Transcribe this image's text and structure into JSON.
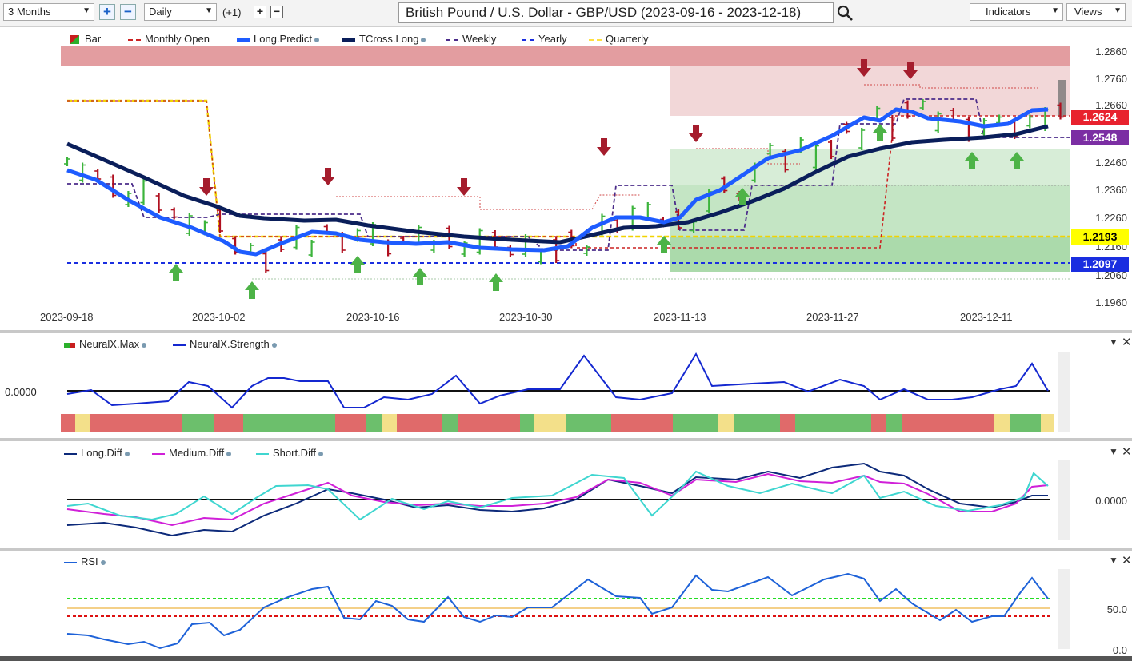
{
  "toolbar": {
    "range": "3 Months",
    "interval": "Daily",
    "offset": "(+1)",
    "symbol_title": "British Pound / U.S. Dollar - GBP/USD (2023-09-16 - 2023-12-18)",
    "indicators": "Indicators",
    "views": "Views"
  },
  "main_legend": [
    "Bar",
    "Monthly Open",
    "Long.Predict",
    "TCross.Long",
    "Weekly",
    "Yearly",
    "Quarterly"
  ],
  "price_axis": [
    "1.2860",
    "1.2760",
    "1.2660",
    "1.2460",
    "1.2360",
    "1.2260",
    "1.2160",
    "1.2060",
    "1.1960"
  ],
  "price_badges": [
    {
      "value": "1.2624",
      "color": "#e8222e",
      "text": "#ffffff"
    },
    {
      "value": "1.2548",
      "color": "#7b2ea3",
      "text": "#ffffff"
    },
    {
      "value": "1.2193",
      "color": "#ffff00",
      "text": "#000000"
    },
    {
      "value": "1.2097",
      "color": "#1a2ee0",
      "text": "#ffffff"
    }
  ],
  "date_axis": [
    "2023-09-18",
    "2023-10-02",
    "2023-10-16",
    "2023-10-30",
    "2023-11-13",
    "2023-11-27",
    "2023-12-11"
  ],
  "neural_legend": [
    "NeuralX.Max",
    "NeuralX.Strength"
  ],
  "neural_value": "0.0000",
  "diff_legend": [
    "Long.Diff",
    "Medium.Diff",
    "Short.Diff"
  ],
  "diff_value": "0.0000",
  "rsi_legend": [
    "RSI"
  ],
  "rsi_axis": [
    "50.0",
    "0.0"
  ],
  "colors": {
    "up": "#3cb43c",
    "down": "#b01020",
    "long_predict": "#1e5cff",
    "tcross": "#0a1e5a",
    "weekly": "#4b2c8a",
    "monthly": "#cc2222",
    "yearly": "#1a2ee0",
    "quarterly": "#ffe040"
  }
}
